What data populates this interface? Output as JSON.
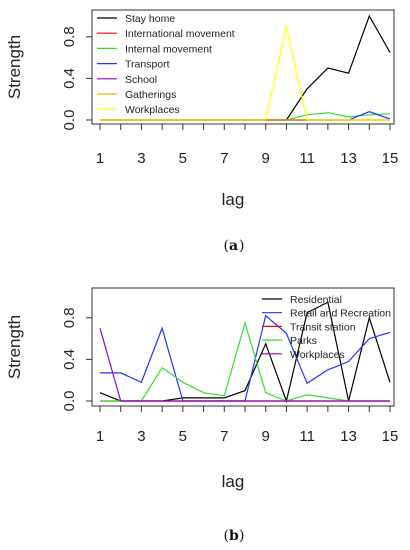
{
  "chart_data": [
    {
      "type": "line",
      "caption": "a",
      "xlabel": "lag",
      "ylabel": "Strength",
      "x": [
        1,
        2,
        3,
        4,
        5,
        6,
        7,
        8,
        9,
        10,
        11,
        12,
        13,
        14,
        15
      ],
      "xticks": [
        "1",
        "3",
        "5",
        "7",
        "9",
        "11",
        "13",
        "15"
      ],
      "yticks": [
        "0.0",
        "0.4",
        "0.8"
      ],
      "ylim": [
        0,
        1.0
      ],
      "xlim": [
        1,
        15
      ],
      "legend_position": "top-left",
      "series": [
        {
          "name": "Stay home",
          "color": "#000000",
          "values": [
            0,
            0,
            0,
            0,
            0,
            0,
            0,
            0,
            0,
            0,
            0.3,
            0.5,
            0.45,
            1.0,
            0.65
          ]
        },
        {
          "name": "International movement",
          "color": "#ff0000",
          "values": [
            0,
            0,
            0,
            0,
            0,
            0,
            0,
            0,
            0,
            0,
            0,
            0,
            0,
            0,
            0
          ]
        },
        {
          "name": "Internal movement",
          "color": "#33dd33",
          "values": [
            0,
            0,
            0,
            0,
            0,
            0,
            0,
            0,
            0,
            0,
            0.05,
            0.07,
            0.03,
            0.05,
            0.06
          ]
        },
        {
          "name": "Transport",
          "color": "#2233ff",
          "values": [
            0,
            0,
            0,
            0,
            0,
            0,
            0,
            0,
            0,
            0,
            0,
            0,
            0,
            0.08,
            0.01
          ]
        },
        {
          "name": "School",
          "color": "#9900cc",
          "values": [
            0,
            0,
            0,
            0,
            0,
            0,
            0,
            0,
            0,
            0,
            0,
            0,
            0,
            0,
            0
          ]
        },
        {
          "name": "Gatherings",
          "color": "#ffaa00",
          "values": [
            0,
            0,
            0,
            0,
            0,
            0,
            0,
            0,
            0,
            0,
            0,
            0,
            0,
            0,
            0
          ]
        },
        {
          "name": "Workplaces",
          "color": "#ffff00",
          "values": [
            0,
            0,
            0,
            0,
            0,
            0,
            0,
            0,
            0,
            0.9,
            0,
            0,
            0,
            0,
            0
          ]
        }
      ]
    },
    {
      "type": "line",
      "caption": "b",
      "xlabel": "lag",
      "ylabel": "Strength",
      "x": [
        1,
        2,
        3,
        4,
        5,
        6,
        7,
        8,
        9,
        10,
        11,
        12,
        13,
        14,
        15
      ],
      "xticks": [
        "1",
        "3",
        "5",
        "7",
        "9",
        "11",
        "13",
        "15"
      ],
      "yticks": [
        "0.0",
        "0.4",
        "0.8"
      ],
      "ylim": [
        0,
        1.0
      ],
      "xlim": [
        1,
        15
      ],
      "legend_position": "top-right",
      "series": [
        {
          "name": "Residential",
          "color": "#000000",
          "values": [
            0.08,
            0,
            0,
            0,
            0.03,
            0.03,
            0.03,
            0.1,
            0.55,
            0,
            0.85,
            0.95,
            0,
            0.8,
            0.18
          ]
        },
        {
          "name": "Retail and Recreation",
          "color": "#2233ff",
          "values": [
            0.27,
            0.27,
            0.18,
            0.7,
            0,
            0,
            0,
            0,
            0.82,
            0.65,
            0.17,
            0.3,
            0.38,
            0.6,
            0.66
          ]
        },
        {
          "name": "Transit station",
          "color": "#ff0000",
          "values": [
            0,
            0,
            0,
            0,
            0,
            0,
            0,
            0,
            0,
            0,
            0,
            0,
            0,
            0,
            0
          ]
        },
        {
          "name": "Parks",
          "color": "#33dd33",
          "values": [
            0,
            0,
            0,
            0.32,
            0.18,
            0.08,
            0.05,
            0.75,
            0.08,
            0,
            0.06,
            0.03,
            0,
            0,
            0
          ]
        },
        {
          "name": "Workplaces",
          "color": "#9900cc",
          "values": [
            0.7,
            0,
            0,
            0,
            0,
            0,
            0,
            0,
            0,
            0,
            0,
            0,
            0,
            0,
            0
          ]
        }
      ]
    }
  ]
}
